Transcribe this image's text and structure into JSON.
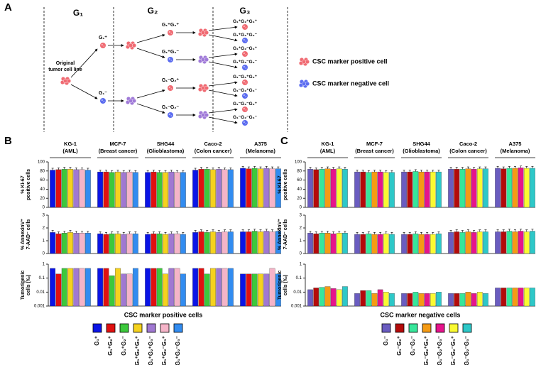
{
  "panel_a": {
    "letter": "A",
    "generations": [
      "G₁",
      "G₂",
      "G₃"
    ],
    "origin": [
      "Original",
      "tumor cell line"
    ],
    "g1": [
      "G₁⁺",
      "G₁⁻"
    ],
    "g2": [
      "G₁⁺G₂⁺",
      "G₁⁺G₂⁻",
      "G₁⁻G₂⁺",
      "G₁⁻G₂⁻"
    ],
    "g3": [
      "G₁⁺G₂⁺G₃⁺",
      "G₁⁺G₂⁺G₃⁻",
      "G₁⁺G₂⁻G₃⁺",
      "G₁⁺G₂⁻G₃⁻",
      "G₁⁻G₂⁺G₃⁺",
      "G₁⁻G₂⁺G₃⁻",
      "G₁⁻G₂⁻G₃⁺",
      "G₁⁻G₂⁻G₃⁻"
    ],
    "legend": [
      "CSC marker positive cell",
      "CSC marker negative cell"
    ]
  },
  "chart_data": [
    {
      "type": "bar",
      "panel": "B",
      "categories": [
        "KG-1",
        "MCF-7",
        "SHG44",
        "Caco-2",
        "A375"
      ],
      "category_notes": [
        "(AML)",
        "(Breast cancer)",
        "(Glioblastoma)",
        "(Colon cancer)",
        "(Melanoma)"
      ],
      "ylabel": [
        "% Ki-67",
        "positive cells"
      ],
      "ylim": [
        0,
        100
      ],
      "yticks": [
        0,
        20,
        40,
        60,
        80,
        100
      ],
      "series": [
        {
          "name": "G₁⁺",
          "color": "#0a14e6",
          "values": [
            82,
            78,
            77,
            82,
            86
          ],
          "errors": [
            4,
            4,
            4,
            4,
            4
          ]
        },
        {
          "name": "G₁⁺G₂⁺",
          "color": "#e01010",
          "values": [
            83,
            78,
            78,
            84,
            85
          ],
          "errors": [
            4,
            4,
            4,
            4,
            4
          ]
        },
        {
          "name": "G₁⁺G₂⁻",
          "color": "#3cc83c",
          "values": [
            84,
            77,
            77,
            84,
            86
          ],
          "errors": [
            4,
            4,
            4,
            4,
            4
          ]
        },
        {
          "name": "G₁⁺G₂⁺G₃⁺",
          "color": "#f5d21e",
          "values": [
            84,
            78,
            77,
            83,
            85
          ],
          "errors": [
            4,
            4,
            4,
            4,
            4
          ]
        },
        {
          "name": "G₁⁺G₂⁺G₃⁻",
          "color": "#a078d2",
          "values": [
            83,
            77,
            78,
            84,
            86
          ],
          "errors": [
            4,
            4,
            4,
            4,
            4
          ]
        },
        {
          "name": "G₁⁺G₂⁻G₃⁺",
          "color": "#f5b4c8",
          "values": [
            83,
            78,
            77,
            83,
            85
          ],
          "errors": [
            4,
            4,
            4,
            4,
            4
          ]
        },
        {
          "name": "G₁⁺G₂⁻G₃⁻",
          "color": "#328cf0",
          "values": [
            82,
            77,
            77,
            83,
            85
          ],
          "errors": [
            4,
            4,
            4,
            4,
            4
          ]
        }
      ]
    },
    {
      "type": "bar",
      "ylabel": [
        "% AnnexinV⁺",
        "7-AAD⁻ cells"
      ],
      "ylim": [
        0,
        3
      ],
      "yticks": [
        0,
        1,
        2,
        3
      ],
      "series": [
        {
          "color": "#0a14e6",
          "values": [
            1.65,
            1.55,
            1.5,
            1.65,
            1.7
          ],
          "errors": [
            0.15,
            0.15,
            0.15,
            0.15,
            0.15
          ]
        },
        {
          "color": "#e01010",
          "values": [
            1.55,
            1.5,
            1.55,
            1.7,
            1.7
          ],
          "errors": [
            0.15,
            0.15,
            0.15,
            0.15,
            0.15
          ]
        },
        {
          "color": "#3cc83c",
          "values": [
            1.6,
            1.55,
            1.55,
            1.65,
            1.75
          ],
          "errors": [
            0.15,
            0.15,
            0.15,
            0.15,
            0.15
          ]
        },
        {
          "color": "#f5d21e",
          "values": [
            1.65,
            1.55,
            1.5,
            1.7,
            1.7
          ],
          "errors": [
            0.15,
            0.15,
            0.15,
            0.15,
            0.15
          ]
        },
        {
          "color": "#a078d2",
          "values": [
            1.6,
            1.5,
            1.55,
            1.65,
            1.75
          ],
          "errors": [
            0.15,
            0.15,
            0.15,
            0.15,
            0.15
          ]
        },
        {
          "color": "#f5b4c8",
          "values": [
            1.6,
            1.55,
            1.55,
            1.7,
            1.7
          ],
          "errors": [
            0.15,
            0.15,
            0.15,
            0.15,
            0.15
          ]
        },
        {
          "color": "#328cf0",
          "values": [
            1.6,
            1.55,
            1.5,
            1.7,
            1.75
          ],
          "errors": [
            0.15,
            0.15,
            0.15,
            0.15,
            0.15
          ]
        }
      ]
    },
    {
      "type": "bar",
      "log": true,
      "xlabel": "CSC marker positive cells",
      "ylabel": [
        "Tumorigenic",
        "cells (‰)"
      ],
      "ylim": [
        0.001,
        1
      ],
      "yticks": [
        0.001,
        0.01,
        0.1,
        1
      ],
      "series": [
        {
          "color": "#0a14e6",
          "values": [
            0.5,
            0.5,
            0.5,
            0.5,
            0.2
          ]
        },
        {
          "color": "#e01010",
          "values": [
            0.2,
            0.5,
            0.5,
            0.5,
            0.2
          ]
        },
        {
          "color": "#3cc83c",
          "values": [
            0.5,
            0.15,
            0.5,
            0.2,
            0.2
          ]
        },
        {
          "color": "#f5d21e",
          "values": [
            0.5,
            0.5,
            0.2,
            0.5,
            0.2
          ]
        },
        {
          "color": "#a078d2",
          "values": [
            0.5,
            0.2,
            0.5,
            0.5,
            0.2
          ]
        },
        {
          "color": "#f5b4c8",
          "values": [
            0.5,
            0.2,
            0.5,
            0.5,
            0.5
          ]
        },
        {
          "color": "#328cf0",
          "values": [
            0.5,
            0.5,
            0.2,
            0.5,
            0.2
          ]
        }
      ]
    },
    {
      "type": "bar",
      "panel": "C",
      "categories": [
        "KG-1",
        "MCF-7",
        "SHG44",
        "Caco-2",
        "A375"
      ],
      "category_notes": [
        "(AML)",
        "(Breast cancer)",
        "(Glioblastoma)",
        "(Colon cancer)",
        "(Melanoma)"
      ],
      "ylabel": [
        "% Ki-67",
        "positive cells"
      ],
      "ylim": [
        0,
        100
      ],
      "yticks": [
        0,
        20,
        40,
        60,
        80,
        100
      ],
      "series": [
        {
          "name": "G₁⁻",
          "color": "#6a5cc0",
          "values": [
            84,
            78,
            78,
            84,
            86
          ],
          "errors": [
            4,
            4,
            4,
            4,
            4
          ]
        },
        {
          "name": "G₁⁻G₂⁺",
          "color": "#b40a0a",
          "values": [
            83,
            78,
            78,
            84,
            85
          ],
          "errors": [
            4,
            4,
            4,
            4,
            4
          ]
        },
        {
          "name": "G₁⁻G₂⁻",
          "color": "#37e69b",
          "values": [
            84,
            77,
            79,
            84,
            86
          ],
          "errors": [
            4,
            4,
            4,
            4,
            4
          ]
        },
        {
          "name": "G₁⁻G₂⁺G₃⁺",
          "color": "#f59b14",
          "values": [
            85,
            78,
            78,
            85,
            86
          ],
          "errors": [
            4,
            4,
            4,
            4,
            4
          ]
        },
        {
          "name": "G₁⁻G₂⁺G₃⁻",
          "color": "#e6148c",
          "values": [
            84,
            78,
            78,
            84,
            87
          ],
          "errors": [
            4,
            4,
            4,
            4,
            4
          ]
        },
        {
          "name": "G₁⁻G₂⁻G₃⁺",
          "color": "#fafa32",
          "values": [
            85,
            77,
            78,
            85,
            86
          ],
          "errors": [
            4,
            4,
            4,
            4,
            4
          ]
        },
        {
          "name": "G₁⁻G₂⁻G₃⁻",
          "color": "#2dc8c8",
          "values": [
            84,
            77,
            78,
            85,
            86
          ],
          "errors": [
            4,
            4,
            4,
            4,
            4
          ]
        }
      ]
    },
    {
      "type": "bar",
      "ylabel": [
        "% AnnexinV⁺",
        "7-AAD⁻ cells"
      ],
      "ylim": [
        0,
        3
      ],
      "yticks": [
        0,
        1,
        2,
        3
      ],
      "series": [
        {
          "color": "#6a5cc0",
          "values": [
            1.6,
            1.5,
            1.5,
            1.65,
            1.7
          ],
          "errors": [
            0.15,
            0.15,
            0.15,
            0.15,
            0.15
          ]
        },
        {
          "color": "#b40a0a",
          "values": [
            1.55,
            1.5,
            1.5,
            1.7,
            1.7
          ],
          "errors": [
            0.15,
            0.15,
            0.15,
            0.15,
            0.15
          ]
        },
        {
          "color": "#37e69b",
          "values": [
            1.6,
            1.55,
            1.55,
            1.65,
            1.75
          ],
          "errors": [
            0.15,
            0.15,
            0.15,
            0.15,
            0.15
          ]
        },
        {
          "color": "#f59b14",
          "values": [
            1.6,
            1.5,
            1.5,
            1.7,
            1.7
          ],
          "errors": [
            0.15,
            0.15,
            0.15,
            0.15,
            0.15
          ]
        },
        {
          "color": "#e6148c",
          "values": [
            1.55,
            1.5,
            1.5,
            1.65,
            1.75
          ],
          "errors": [
            0.15,
            0.15,
            0.15,
            0.15,
            0.15
          ]
        },
        {
          "color": "#fafa32",
          "values": [
            1.6,
            1.55,
            1.5,
            1.7,
            1.7
          ],
          "errors": [
            0.15,
            0.15,
            0.15,
            0.15,
            0.15
          ]
        },
        {
          "color": "#2dc8c8",
          "values": [
            1.6,
            1.5,
            1.55,
            1.7,
            1.75
          ],
          "errors": [
            0.15,
            0.15,
            0.15,
            0.15,
            0.15
          ]
        }
      ]
    },
    {
      "type": "bar",
      "log": true,
      "xlabel": "CSC marker negative cells",
      "ylabel": [
        "Tumorigenic",
        "cells (‰)"
      ],
      "ylim": [
        0.001,
        1
      ],
      "yticks": [
        0.001,
        0.01,
        0.1,
        1
      ],
      "series": [
        {
          "color": "#6a5cc0",
          "values": [
            0.015,
            0.008,
            0.008,
            0.008,
            0.02
          ]
        },
        {
          "color": "#b40a0a",
          "values": [
            0.02,
            0.013,
            0.008,
            0.008,
            0.02
          ]
        },
        {
          "color": "#37e69b",
          "values": [
            0.022,
            0.013,
            0.01,
            0.008,
            0.02
          ]
        },
        {
          "color": "#f59b14",
          "values": [
            0.025,
            0.008,
            0.008,
            0.01,
            0.02
          ]
        },
        {
          "color": "#e6148c",
          "values": [
            0.018,
            0.015,
            0.008,
            0.008,
            0.02
          ]
        },
        {
          "color": "#fafa32",
          "values": [
            0.015,
            0.01,
            0.008,
            0.01,
            0.02
          ]
        },
        {
          "color": "#2dc8c8",
          "values": [
            0.025,
            0.008,
            0.01,
            0.008,
            0.02
          ]
        }
      ]
    }
  ]
}
